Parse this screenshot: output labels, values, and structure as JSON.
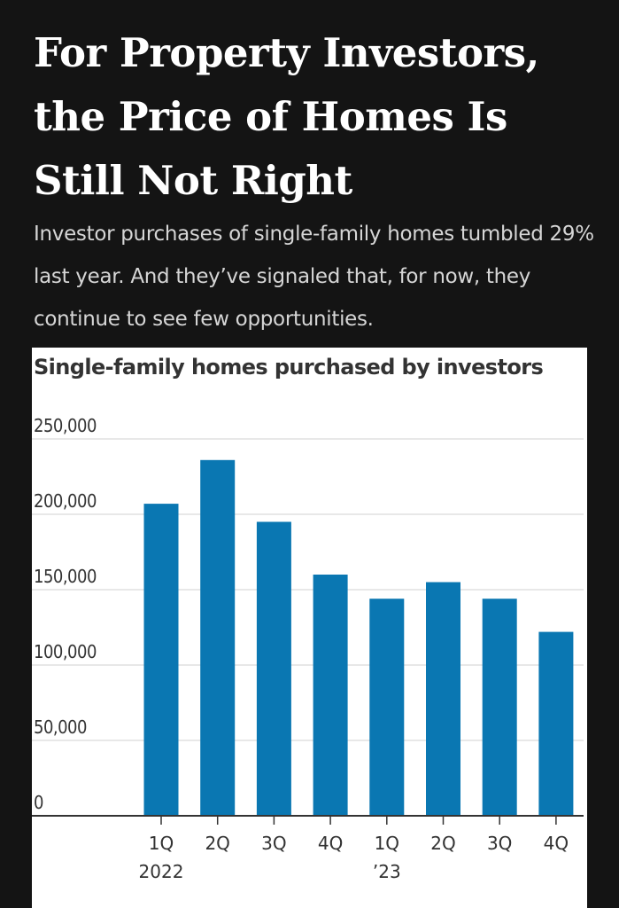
{
  "headline": "For Property Investors, the Price of Homes Is Still Not Right",
  "dek": "Investor purchases of single-family homes tumbled 29% last year. And they’ve signaled that, for now, they continue to see few opportunities.",
  "chart_data": {
    "type": "bar",
    "title": "Single-family homes purchased by investors",
    "xlabel": "",
    "ylabel": "",
    "categories": [
      "1Q 2022",
      "2Q",
      "3Q",
      "4Q",
      "1Q ’23",
      "2Q",
      "3Q",
      "4Q"
    ],
    "category_labels": [
      [
        "1Q",
        "2022"
      ],
      [
        "2Q"
      ],
      [
        "3Q"
      ],
      [
        "4Q"
      ],
      [
        "1Q",
        "’23"
      ],
      [
        "2Q"
      ],
      [
        "3Q"
      ],
      [
        "4Q"
      ]
    ],
    "values": [
      207000,
      236000,
      195000,
      160000,
      144000,
      155000,
      144000,
      122000
    ],
    "ylim": [
      0,
      250000
    ],
    "yticks": [
      0,
      50000,
      100000,
      150000,
      200000,
      250000
    ],
    "ytick_labels": [
      "0",
      "50,000",
      "100,000",
      "150,000",
      "200,000",
      "250,000"
    ],
    "grid": true,
    "bar_color": "#0a77b2",
    "grid_color": "#e0e0e0",
    "axis_color": "#333333"
  }
}
